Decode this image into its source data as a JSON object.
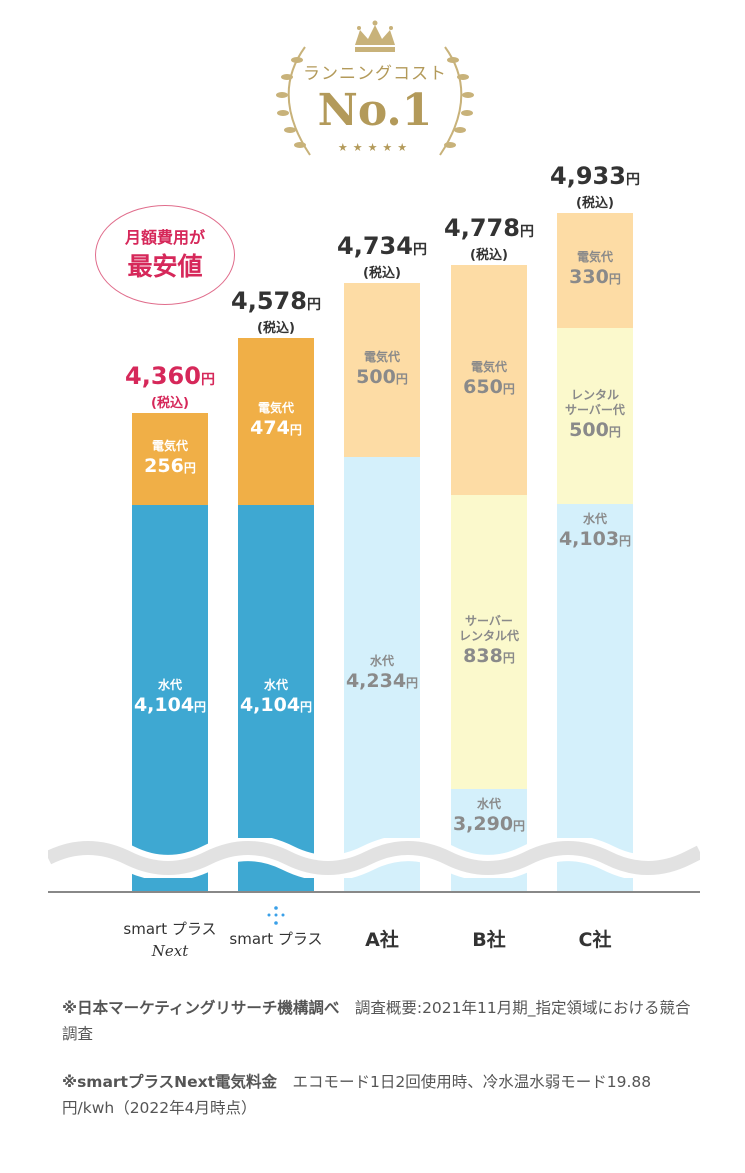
{
  "badge": {
    "subtitle": "ランニングコスト",
    "title": "No.1",
    "stars": "★★★★★"
  },
  "highlight": {
    "line1": "月額費用が",
    "line2": "最安値"
  },
  "colors": {
    "water_dark": "#3ea8d2",
    "elec_dark": "#f0af47",
    "water_light": "#d4f0fb",
    "elec_light": "#fddca5",
    "rental_light": "#fbf9cc",
    "accent": "#d6285a"
  },
  "chart_data": {
    "type": "bar",
    "stacked": true,
    "unit": "円",
    "tax_note": "(税込)",
    "categories": [
      "smart プラス Next",
      "smart プラス",
      "A社",
      "B社",
      "C社"
    ],
    "totals": [
      "4,360",
      "4,578",
      "4,734",
      "4,778",
      "4,933"
    ],
    "series": [
      {
        "name": "水代",
        "values": [
          "4,104",
          "4,104",
          "4,234",
          "3,290",
          "4,103"
        ]
      },
      {
        "name": "サーバーレンタル代",
        "labels": [
          "",
          "",
          "",
          "サーバー\nレンタル代",
          "レンタル\nサーバー代"
        ],
        "values": [
          null,
          null,
          null,
          "838",
          "500"
        ]
      },
      {
        "name": "電気代",
        "values": [
          "256",
          "474",
          "500",
          "650",
          "330"
        ]
      }
    ]
  },
  "xlabels": {
    "c1a": "smart プラス",
    "c1b": "Next",
    "c2": "smart プラス",
    "c3": "A社",
    "c4": "B社",
    "c5": "C社"
  },
  "footnotes": [
    {
      "bold": "※日本マーケティングリサーチ機構調べ",
      "text": "　調査概要:2021年11月期_指定領域における競合調査"
    },
    {
      "bold": "※smartプラスNext電気料金",
      "text": "　エコモード1日2回使用時、冷水温水弱モード19.88円/kwh（2022年4月時点）"
    }
  ]
}
